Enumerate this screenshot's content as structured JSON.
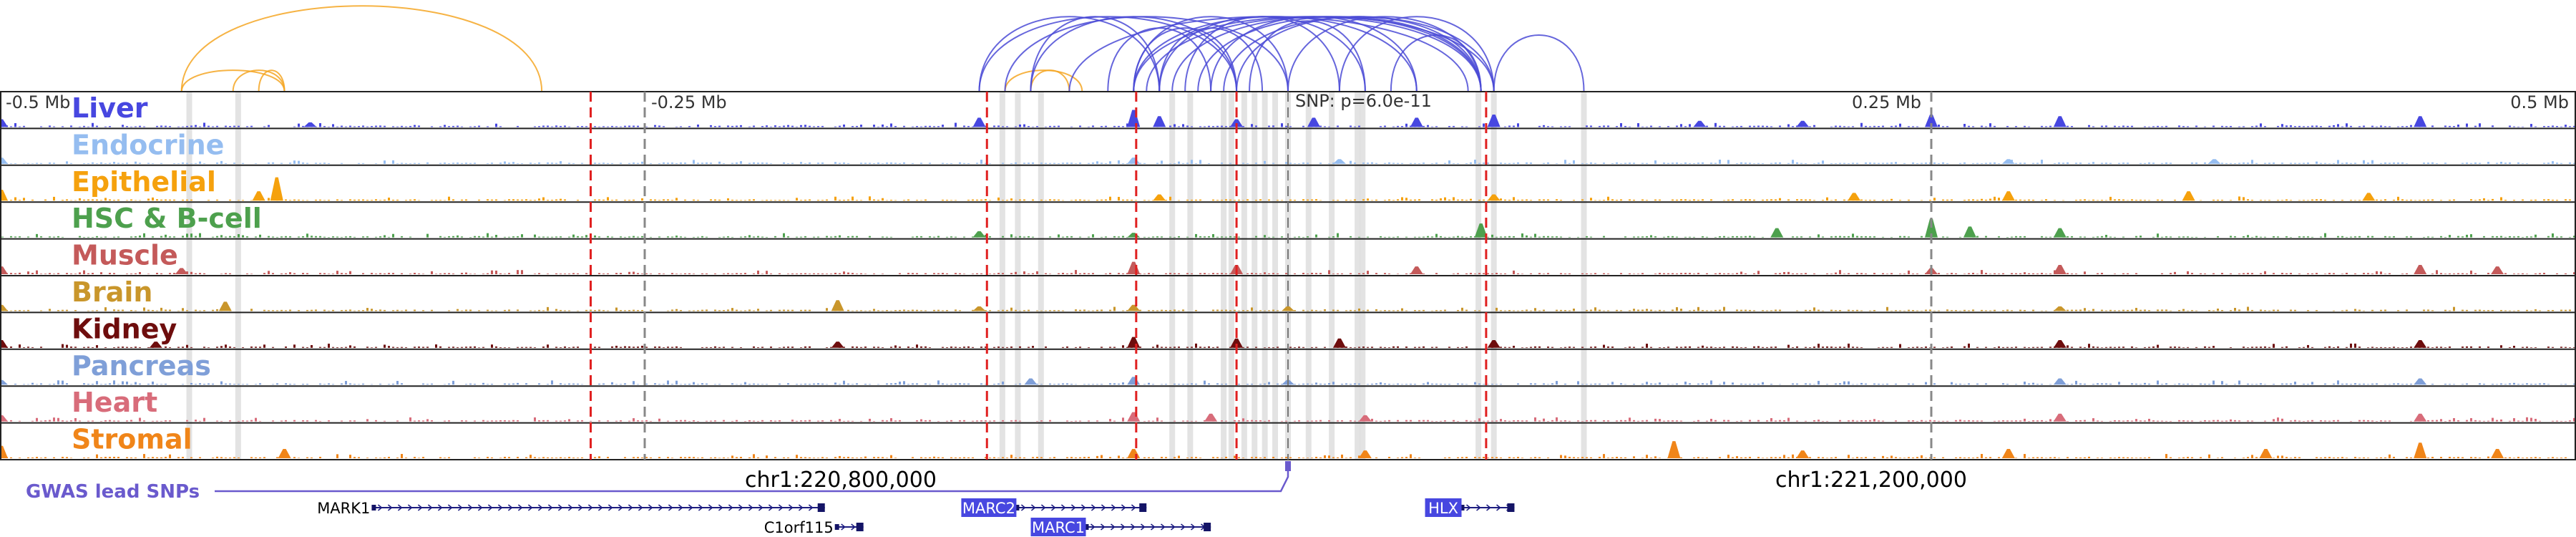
{
  "chart_data": {
    "type": "genome-browser",
    "title": "",
    "axis": {
      "unit": "Mb relative to lead SNP",
      "xlim": [
        -0.5,
        0.5
      ],
      "ticks": [
        {
          "value": -0.5,
          "label": "-0.5 Mb"
        },
        {
          "value": -0.25,
          "label": "-0.25 Mb"
        },
        {
          "value": 0.25,
          "label": "0.25 Mb"
        },
        {
          "value": 0.5,
          "label": "0.5 Mb"
        }
      ],
      "snp_label": "SNP: p=6.0e-11",
      "snp_position": 0.0
    },
    "coordinates": [
      {
        "label": "chr1:220,800,000",
        "position": -0.17
      },
      {
        "label": "chr1:221,200,000",
        "position": 0.23
      }
    ],
    "tracks": [
      {
        "name": "Liver",
        "color": "#4747e0",
        "label_color": "#4747e0"
      },
      {
        "name": "Endocrine",
        "color": "#95bdf0",
        "label_color": "#95bdf0"
      },
      {
        "name": "Epithelial",
        "color": "#f5a10d",
        "label_color": "#f5a10d"
      },
      {
        "name": "HSC & B-cell",
        "color": "#4da04d",
        "label_color": "#4da04d"
      },
      {
        "name": "Muscle",
        "color": "#c45a5a",
        "label_color": "#c45a5a"
      },
      {
        "name": "Brain",
        "color": "#c9962b",
        "label_color": "#c9962b"
      },
      {
        "name": "Kidney",
        "color": "#6e0d0d",
        "label_color": "#6e0d0d"
      },
      {
        "name": "Pancreas",
        "color": "#7f9fd8",
        "label_color": "#7f9fd8"
      },
      {
        "name": "Heart",
        "color": "#d86c7a",
        "label_color": "#d86c7a"
      },
      {
        "name": "Stromal",
        "color": "#f08519",
        "label_color": "#f08519"
      }
    ],
    "highlight_red_dashed": [
      -0.271,
      -0.117,
      -0.059,
      -0.02,
      0.077
    ],
    "highlight_grey_dashed": [
      -0.25,
      0.25
    ],
    "highlight_grey_bands": [
      -0.427,
      -0.408,
      -0.111,
      -0.105,
      -0.096,
      -0.045,
      -0.038,
      -0.025,
      -0.022,
      -0.017,
      -0.013,
      -0.009,
      -0.005,
      0.0,
      0.008,
      0.017,
      0.027,
      0.029,
      0.074,
      0.08,
      0.115
    ],
    "peaks": {
      "Liver": [
        [
          -0.5,
          0.25
        ],
        [
          -0.12,
          0.3
        ],
        [
          -0.06,
          0.55
        ],
        [
          -0.05,
          0.35
        ],
        [
          -0.02,
          0.25
        ],
        [
          0.01,
          0.3
        ],
        [
          0.05,
          0.3
        ],
        [
          0.08,
          0.4
        ],
        [
          0.25,
          0.4
        ],
        [
          0.3,
          0.35
        ],
        [
          0.44,
          0.35
        ],
        [
          -0.38,
          0.15
        ],
        [
          0.16,
          0.2
        ],
        [
          0.2,
          0.2
        ]
      ],
      "Endocrine": [
        [
          -0.5,
          0.2
        ],
        [
          -0.06,
          0.2
        ],
        [
          0.02,
          0.15
        ],
        [
          0.28,
          0.15
        ],
        [
          0.36,
          0.15
        ]
      ],
      "Epithelial": [
        [
          -0.5,
          0.35
        ],
        [
          -0.393,
          0.75
        ],
        [
          -0.4,
          0.3
        ],
        [
          -0.05,
          0.2
        ],
        [
          0.08,
          0.2
        ],
        [
          0.22,
          0.25
        ],
        [
          0.28,
          0.3
        ],
        [
          0.35,
          0.3
        ],
        [
          0.42,
          0.25
        ]
      ],
      "HSC & B-cell": [
        [
          -0.12,
          0.2
        ],
        [
          -0.06,
          0.15
        ],
        [
          0.075,
          0.45
        ],
        [
          0.19,
          0.3
        ],
        [
          0.25,
          0.6
        ],
        [
          0.265,
          0.35
        ],
        [
          0.3,
          0.3
        ]
      ],
      "Muscle": [
        [
          -0.5,
          0.25
        ],
        [
          -0.43,
          0.2
        ],
        [
          -0.06,
          0.4
        ],
        [
          -0.02,
          0.3
        ],
        [
          0.05,
          0.25
        ],
        [
          0.25,
          0.2
        ],
        [
          0.3,
          0.3
        ],
        [
          0.44,
          0.3
        ],
        [
          0.47,
          0.25
        ]
      ],
      "Brain": [
        [
          -0.5,
          0.2
        ],
        [
          -0.413,
          0.3
        ],
        [
          -0.175,
          0.35
        ],
        [
          -0.12,
          0.15
        ],
        [
          -0.06,
          0.2
        ],
        [
          0.0,
          0.15
        ],
        [
          0.3,
          0.15
        ]
      ],
      "Kidney": [
        [
          -0.5,
          0.25
        ],
        [
          -0.44,
          0.2
        ],
        [
          -0.175,
          0.2
        ],
        [
          -0.06,
          0.35
        ],
        [
          -0.02,
          0.3
        ],
        [
          0.02,
          0.3
        ],
        [
          0.08,
          0.25
        ],
        [
          0.3,
          0.25
        ],
        [
          0.44,
          0.25
        ]
      ],
      "Pancreas": [
        [
          -0.5,
          0.15
        ],
        [
          -0.1,
          0.2
        ],
        [
          -0.06,
          0.25
        ],
        [
          0.0,
          0.15
        ],
        [
          0.3,
          0.2
        ],
        [
          0.44,
          0.2
        ]
      ],
      "Heart": [
        [
          -0.5,
          0.2
        ],
        [
          -0.06,
          0.3
        ],
        [
          -0.03,
          0.25
        ],
        [
          0.03,
          0.2
        ],
        [
          0.3,
          0.25
        ],
        [
          0.44,
          0.25
        ]
      ],
      "Stromal": [
        [
          -0.5,
          0.4
        ],
        [
          -0.39,
          0.3
        ],
        [
          -0.06,
          0.3
        ],
        [
          0.03,
          0.25
        ],
        [
          0.15,
          0.55
        ],
        [
          0.2,
          0.25
        ],
        [
          0.28,
          0.3
        ],
        [
          0.38,
          0.3
        ],
        [
          0.44,
          0.5
        ],
        [
          0.47,
          0.3
        ]
      ]
    },
    "loops_orange": [
      [
        -0.43,
        -0.39
      ],
      [
        -0.41,
        -0.39
      ],
      [
        -0.4,
        -0.39
      ],
      [
        -0.11,
        -0.08
      ],
      [
        -0.1,
        -0.085
      ]
    ],
    "loops_orange_large": [
      [
        -0.43,
        -0.29
      ]
    ],
    "loops_blue": [
      [
        -0.12,
        -0.05
      ],
      [
        -0.12,
        -0.02
      ],
      [
        -0.11,
        0.0
      ],
      [
        -0.1,
        -0.05
      ],
      [
        -0.1,
        -0.02
      ],
      [
        -0.085,
        0.07
      ],
      [
        -0.07,
        -0.03
      ],
      [
        -0.06,
        -0.02
      ],
      [
        -0.06,
        0.0
      ],
      [
        -0.06,
        0.05
      ],
      [
        -0.06,
        0.075
      ],
      [
        -0.055,
        0.08
      ],
      [
        -0.05,
        -0.01
      ],
      [
        -0.05,
        0.03
      ],
      [
        -0.045,
        0.075
      ],
      [
        -0.04,
        0.02
      ],
      [
        -0.035,
        0.075
      ],
      [
        -0.03,
        0.05
      ],
      [
        -0.025,
        0.08
      ],
      [
        -0.02,
        0.075
      ],
      [
        -0.015,
        0.03
      ],
      [
        0.0,
        0.075
      ],
      [
        0.02,
        0.08
      ],
      [
        0.04,
        0.075
      ],
      [
        0.08,
        0.115
      ]
    ],
    "gwas": {
      "label": "GWAS lead SNPs",
      "color": "#6a5acd",
      "snp_position": 0.0
    },
    "genes": [
      {
        "name": "MARK1",
        "start": -0.355,
        "end": -0.18,
        "strand": "+",
        "row": 0,
        "highlight": false
      },
      {
        "name": "MARC2",
        "start": -0.105,
        "end": -0.055,
        "strand": "+",
        "row": 0,
        "highlight": true
      },
      {
        "name": "HLX",
        "start": 0.068,
        "end": 0.088,
        "strand": "+",
        "row": 0,
        "highlight": true
      },
      {
        "name": "C1orf115",
        "start": -0.175,
        "end": -0.165,
        "strand": "+",
        "row": 1,
        "highlight": false
      },
      {
        "name": "MARC1",
        "start": -0.078,
        "end": -0.03,
        "strand": "+",
        "row": 1,
        "highlight": true
      }
    ]
  }
}
